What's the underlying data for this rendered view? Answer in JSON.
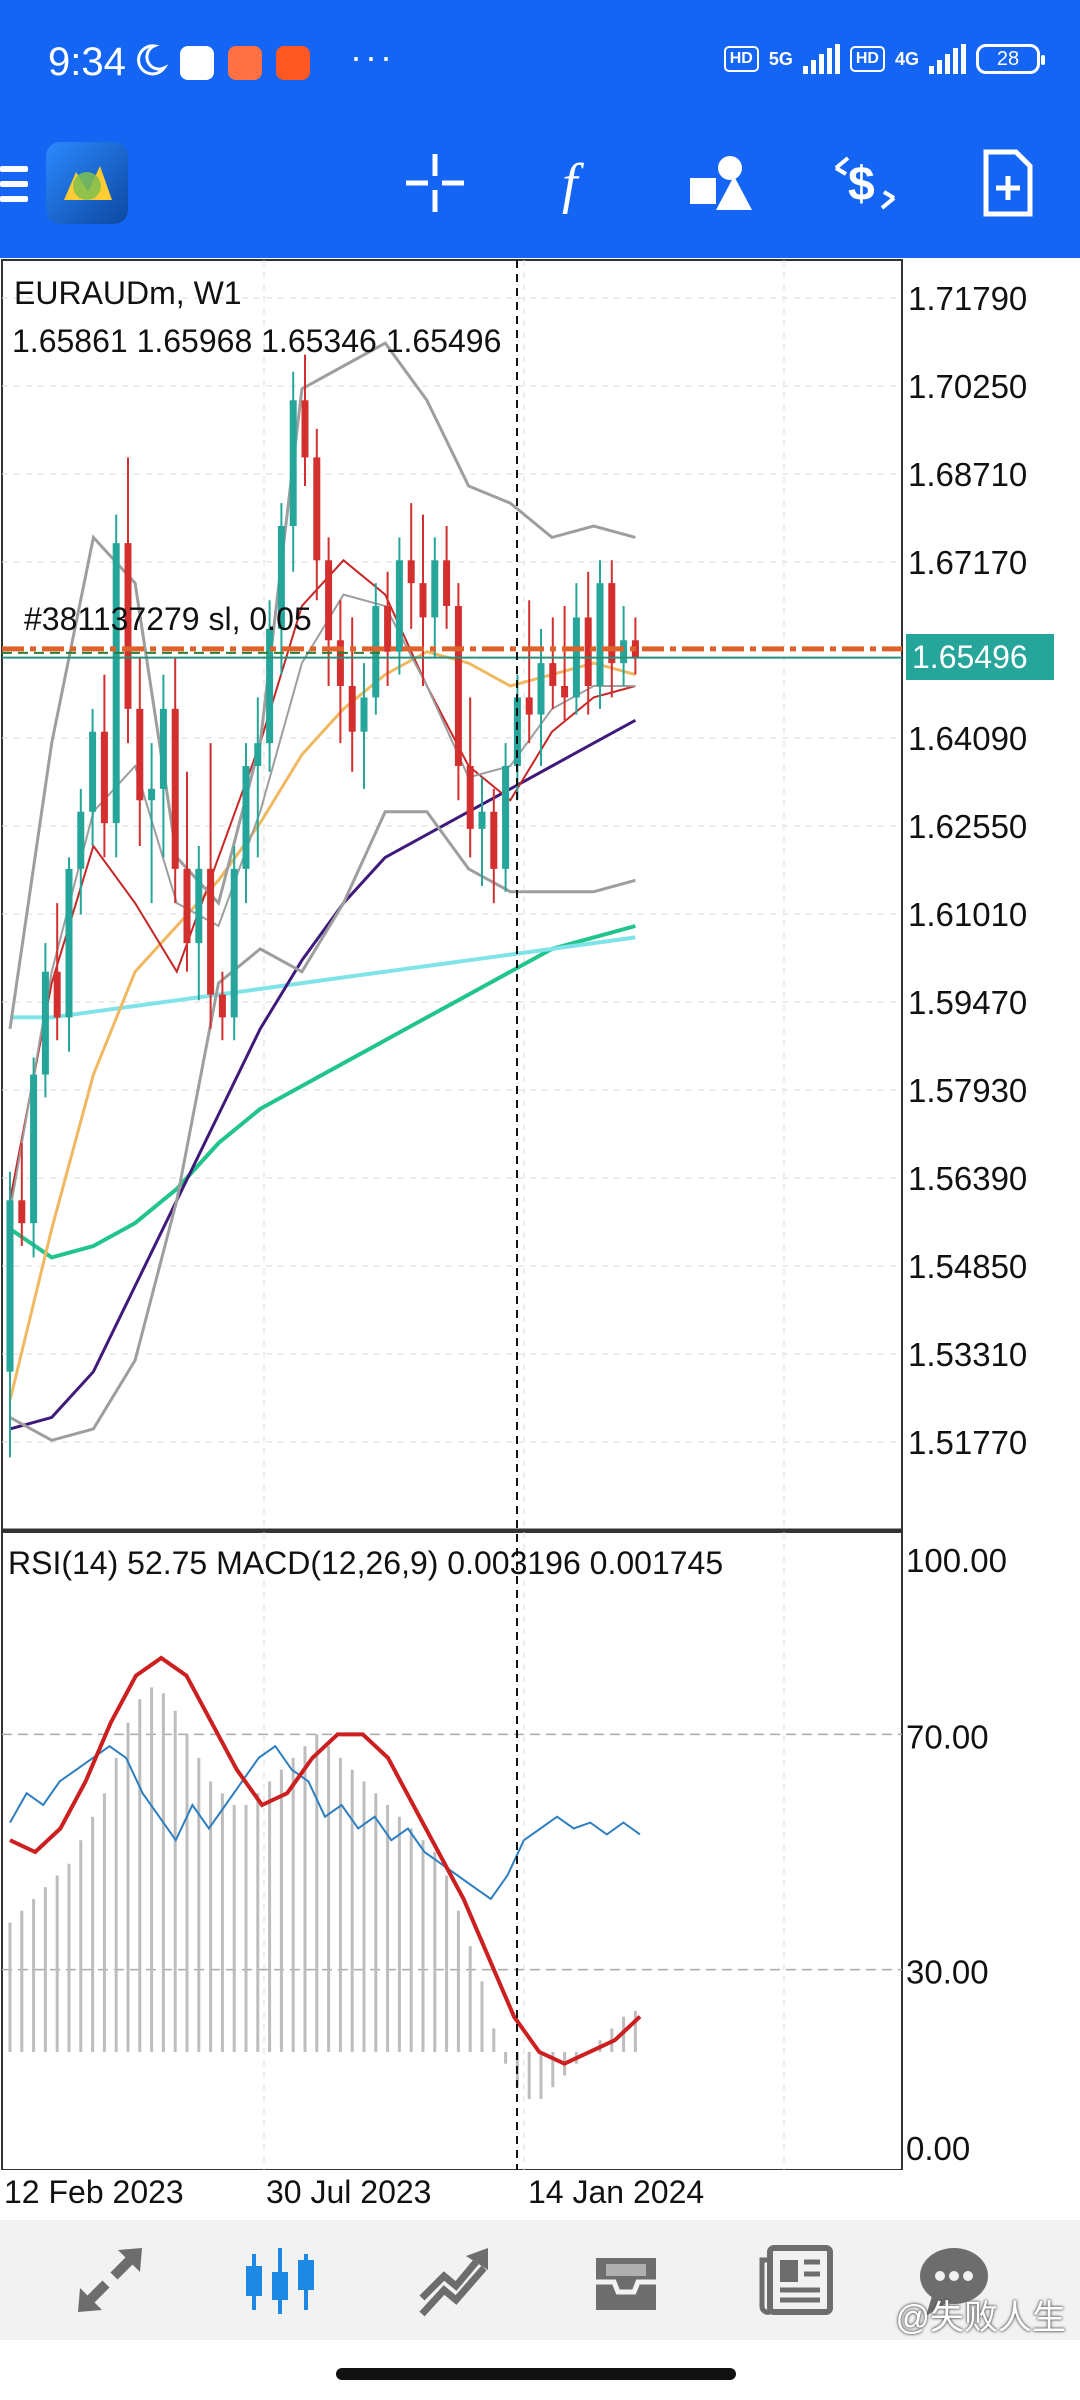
{
  "status_bar": {
    "time": "9:34",
    "hd1": "HD",
    "net1": "5G",
    "hd2": "HD",
    "net2": "4G",
    "battery": "28"
  },
  "toolbar": {
    "icons": [
      "menu-icon",
      "mt-logo-icon",
      "crosshair-icon",
      "indicators-f-icon",
      "objects-icon",
      "trade-dollar-icon",
      "new-document-icon"
    ]
  },
  "chart": {
    "symbol": "EURAUDm, W1",
    "ohlc": "1.65861 1.65968 1.65346 1.65496",
    "order_label": "#381137279 sl, 0.05",
    "current_price": "1.65496",
    "price_axis": [
      "1.71790",
      "1.70250",
      "1.68710",
      "1.67170",
      "1.64090",
      "1.62550",
      "1.61010",
      "1.59470",
      "1.57930",
      "1.56390",
      "1.54850",
      "1.53310",
      "1.51770"
    ],
    "indicator_header": "RSI(14) 52.75 MACD(12,26,9) 0.003196 0.001745",
    "indicator_axis": [
      "100.00",
      "70.00",
      "30.00",
      "0.00"
    ],
    "time_axis": [
      "12 Feb 2023",
      "30 Jul 2023",
      "14 Jan 2024"
    ],
    "colors": {
      "bull": "#26a69a",
      "bear": "#d32f2f",
      "order_line": "#e0622b",
      "price_badge": "#26a69a",
      "bollinger": "#9e9e9e",
      "ma_red": "#c62828",
      "ma_orange": "#f0b860",
      "ma_purple": "#3f1a7a",
      "ma_cyan": "#7fe3e8",
      "ma_green": "#21c48a",
      "rsi": "#2f7fc0",
      "macd_signal": "#cc1f1f"
    }
  },
  "bottom_nav": {
    "icons": [
      "quotes-arrows-icon",
      "chart-candles-icon",
      "trade-chart-icon",
      "history-inbox-icon",
      "news-icon",
      "chat-icon"
    ]
  },
  "watermark": "@失败人生"
}
